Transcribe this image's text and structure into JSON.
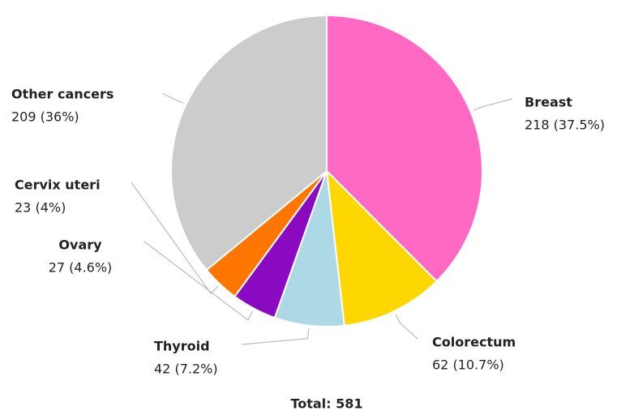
{
  "chart_data": {
    "type": "pie",
    "categories": [
      "Breast",
      "Colorectum",
      "Thyroid",
      "Ovary",
      "Cervix uteri",
      "Other cancers"
    ],
    "values": [
      218,
      62,
      42,
      27,
      23,
      209
    ],
    "value_labels": [
      "218 (37.5%)",
      "62 (10.7%)",
      "42 (7.2%)",
      "27 (4.6%)",
      "23 (4%)",
      "209 (36%)"
    ],
    "colors": [
      "#ff69c4",
      "#ffd700",
      "#add8e6",
      "#8a0ac2",
      "#ff7700",
      "#cccccc"
    ],
    "total_label": "Total: 581"
  }
}
